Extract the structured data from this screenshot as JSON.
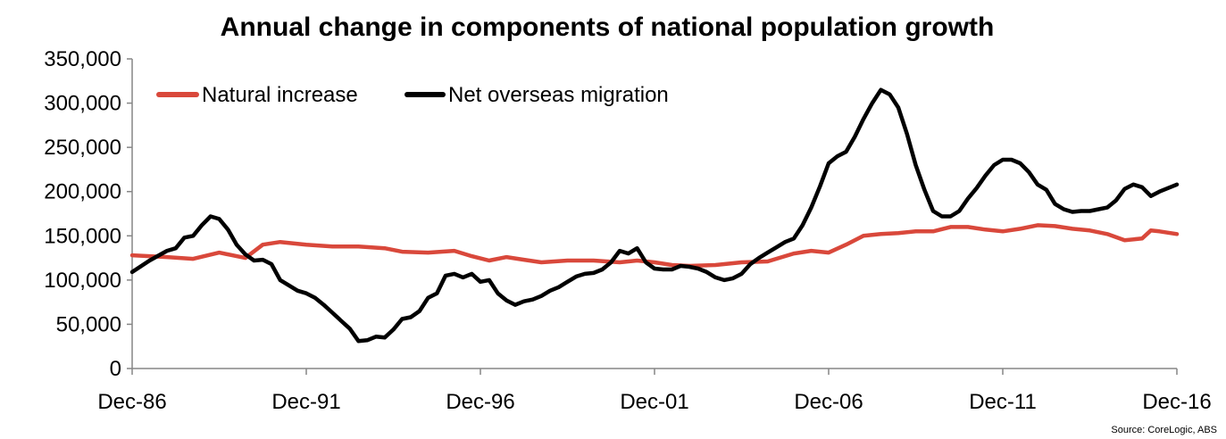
{
  "chart_data": {
    "type": "line",
    "title": "Annual change in components of national population growth",
    "source": "Source: CoreLogic, ABS",
    "xlabel": "",
    "ylabel": "",
    "x_start": 1986.92,
    "x_end": 2016.92,
    "x_ticks": [
      {
        "x": 1986.92,
        "label": "Dec-86"
      },
      {
        "x": 1991.92,
        "label": "Dec-91"
      },
      {
        "x": 1996.92,
        "label": "Dec-96"
      },
      {
        "x": 2001.92,
        "label": "Dec-01"
      },
      {
        "x": 2006.92,
        "label": "Dec-06"
      },
      {
        "x": 2011.92,
        "label": "Dec-11"
      },
      {
        "x": 2016.92,
        "label": "Dec-16"
      }
    ],
    "ylim": [
      0,
      350000
    ],
    "y_ticks": [
      {
        "value": 0,
        "label": "0"
      },
      {
        "value": 50000,
        "label": "50,000"
      },
      {
        "value": 100000,
        "label": "100,000"
      },
      {
        "value": 150000,
        "label": "150,000"
      },
      {
        "value": 200000,
        "label": "200,000"
      },
      {
        "value": 250000,
        "label": "250,000"
      },
      {
        "value": 300000,
        "label": "300,000"
      },
      {
        "value": 350000,
        "label": "350,000"
      }
    ],
    "legend_position": "top-left",
    "series": [
      {
        "name": "Natural increase",
        "color": "#d9483b",
        "points": [
          [
            1986.92,
            128000
          ],
          [
            1987.92,
            126000
          ],
          [
            1988.67,
            124000
          ],
          [
            1989.42,
            131000
          ],
          [
            1990.17,
            125000
          ],
          [
            1990.67,
            140000
          ],
          [
            1991.17,
            143000
          ],
          [
            1991.92,
            140000
          ],
          [
            1992.67,
            138000
          ],
          [
            1993.42,
            138000
          ],
          [
            1994.17,
            136000
          ],
          [
            1994.67,
            132000
          ],
          [
            1995.42,
            131000
          ],
          [
            1996.17,
            133000
          ],
          [
            1996.67,
            127000
          ],
          [
            1997.17,
            122000
          ],
          [
            1997.67,
            126000
          ],
          [
            1998.17,
            123000
          ],
          [
            1998.67,
            120000
          ],
          [
            1999.42,
            122000
          ],
          [
            2000.17,
            122000
          ],
          [
            2000.92,
            120000
          ],
          [
            2001.42,
            122000
          ],
          [
            2001.92,
            120000
          ],
          [
            2002.42,
            117000
          ],
          [
            2002.92,
            116000
          ],
          [
            2003.67,
            117000
          ],
          [
            2004.42,
            120000
          ],
          [
            2005.17,
            121000
          ],
          [
            2005.92,
            130000
          ],
          [
            2006.42,
            133000
          ],
          [
            2006.92,
            131000
          ],
          [
            2007.42,
            140000
          ],
          [
            2007.92,
            150000
          ],
          [
            2008.42,
            152000
          ],
          [
            2008.92,
            153000
          ],
          [
            2009.42,
            155000
          ],
          [
            2009.92,
            155000
          ],
          [
            2010.42,
            160000
          ],
          [
            2010.92,
            160000
          ],
          [
            2011.42,
            157000
          ],
          [
            2011.92,
            155000
          ],
          [
            2012.42,
            158000
          ],
          [
            2012.92,
            162000
          ],
          [
            2013.42,
            161000
          ],
          [
            2013.92,
            158000
          ],
          [
            2014.42,
            156000
          ],
          [
            2014.92,
            152000
          ],
          [
            2015.42,
            145000
          ],
          [
            2015.92,
            147000
          ],
          [
            2016.17,
            156000
          ],
          [
            2016.42,
            155000
          ],
          [
            2016.92,
            152000
          ]
        ]
      },
      {
        "name": "Net overseas migration",
        "color": "#000000",
        "points": [
          [
            1986.92,
            109000
          ],
          [
            1987.42,
            122000
          ],
          [
            1987.92,
            133000
          ],
          [
            1988.17,
            136000
          ],
          [
            1988.42,
            148000
          ],
          [
            1988.67,
            150000
          ],
          [
            1988.92,
            162000
          ],
          [
            1989.17,
            172000
          ],
          [
            1989.42,
            169000
          ],
          [
            1989.67,
            157000
          ],
          [
            1989.92,
            140000
          ],
          [
            1990.17,
            129000
          ],
          [
            1990.42,
            122000
          ],
          [
            1990.67,
            123000
          ],
          [
            1990.92,
            118000
          ],
          [
            1991.17,
            100000
          ],
          [
            1991.42,
            94000
          ],
          [
            1991.67,
            88000
          ],
          [
            1991.92,
            85000
          ],
          [
            1992.17,
            80000
          ],
          [
            1992.42,
            72000
          ],
          [
            1992.67,
            63000
          ],
          [
            1992.92,
            54000
          ],
          [
            1993.17,
            45000
          ],
          [
            1993.42,
            31000
          ],
          [
            1993.67,
            32000
          ],
          [
            1993.92,
            36000
          ],
          [
            1994.17,
            35000
          ],
          [
            1994.42,
            44000
          ],
          [
            1994.67,
            56000
          ],
          [
            1994.92,
            58000
          ],
          [
            1995.17,
            65000
          ],
          [
            1995.42,
            80000
          ],
          [
            1995.67,
            85000
          ],
          [
            1995.92,
            105000
          ],
          [
            1996.17,
            107000
          ],
          [
            1996.42,
            103000
          ],
          [
            1996.67,
            107000
          ],
          [
            1996.92,
            98000
          ],
          [
            1997.17,
            100000
          ],
          [
            1997.42,
            85000
          ],
          [
            1997.67,
            77000
          ],
          [
            1997.92,
            72000
          ],
          [
            1998.17,
            76000
          ],
          [
            1998.42,
            78000
          ],
          [
            1998.67,
            82000
          ],
          [
            1998.92,
            88000
          ],
          [
            1999.17,
            92000
          ],
          [
            1999.42,
            98000
          ],
          [
            1999.67,
            104000
          ],
          [
            1999.92,
            107000
          ],
          [
            2000.17,
            108000
          ],
          [
            2000.42,
            112000
          ],
          [
            2000.67,
            120000
          ],
          [
            2000.92,
            133000
          ],
          [
            2001.17,
            130000
          ],
          [
            2001.42,
            136000
          ],
          [
            2001.67,
            120000
          ],
          [
            2001.92,
            113000
          ],
          [
            2002.17,
            112000
          ],
          [
            2002.42,
            112000
          ],
          [
            2002.67,
            116000
          ],
          [
            2002.92,
            115000
          ],
          [
            2003.17,
            113000
          ],
          [
            2003.42,
            109000
          ],
          [
            2003.67,
            103000
          ],
          [
            2003.92,
            100000
          ],
          [
            2004.17,
            102000
          ],
          [
            2004.42,
            107000
          ],
          [
            2004.67,
            118000
          ],
          [
            2004.92,
            125000
          ],
          [
            2005.17,
            131000
          ],
          [
            2005.42,
            137000
          ],
          [
            2005.67,
            143000
          ],
          [
            2005.92,
            147000
          ],
          [
            2006.17,
            162000
          ],
          [
            2006.42,
            182000
          ],
          [
            2006.67,
            206000
          ],
          [
            2006.92,
            232000
          ],
          [
            2007.17,
            240000
          ],
          [
            2007.42,
            245000
          ],
          [
            2007.67,
            262000
          ],
          [
            2007.92,
            282000
          ],
          [
            2008.17,
            300000
          ],
          [
            2008.42,
            315000
          ],
          [
            2008.67,
            310000
          ],
          [
            2008.92,
            295000
          ],
          [
            2009.17,
            265000
          ],
          [
            2009.42,
            230000
          ],
          [
            2009.67,
            202000
          ],
          [
            2009.92,
            178000
          ],
          [
            2010.17,
            172000
          ],
          [
            2010.42,
            172000
          ],
          [
            2010.67,
            178000
          ],
          [
            2010.92,
            192000
          ],
          [
            2011.17,
            204000
          ],
          [
            2011.42,
            218000
          ],
          [
            2011.67,
            230000
          ],
          [
            2011.92,
            236000
          ],
          [
            2012.17,
            236000
          ],
          [
            2012.42,
            232000
          ],
          [
            2012.67,
            222000
          ],
          [
            2012.92,
            208000
          ],
          [
            2013.17,
            202000
          ],
          [
            2013.42,
            186000
          ],
          [
            2013.67,
            180000
          ],
          [
            2013.92,
            177000
          ],
          [
            2014.17,
            178000
          ],
          [
            2014.42,
            178000
          ],
          [
            2014.67,
            180000
          ],
          [
            2014.92,
            182000
          ],
          [
            2015.17,
            190000
          ],
          [
            2015.42,
            203000
          ],
          [
            2015.67,
            208000
          ],
          [
            2015.92,
            205000
          ],
          [
            2016.17,
            195000
          ],
          [
            2016.42,
            200000
          ],
          [
            2016.92,
            208000
          ]
        ]
      }
    ]
  }
}
